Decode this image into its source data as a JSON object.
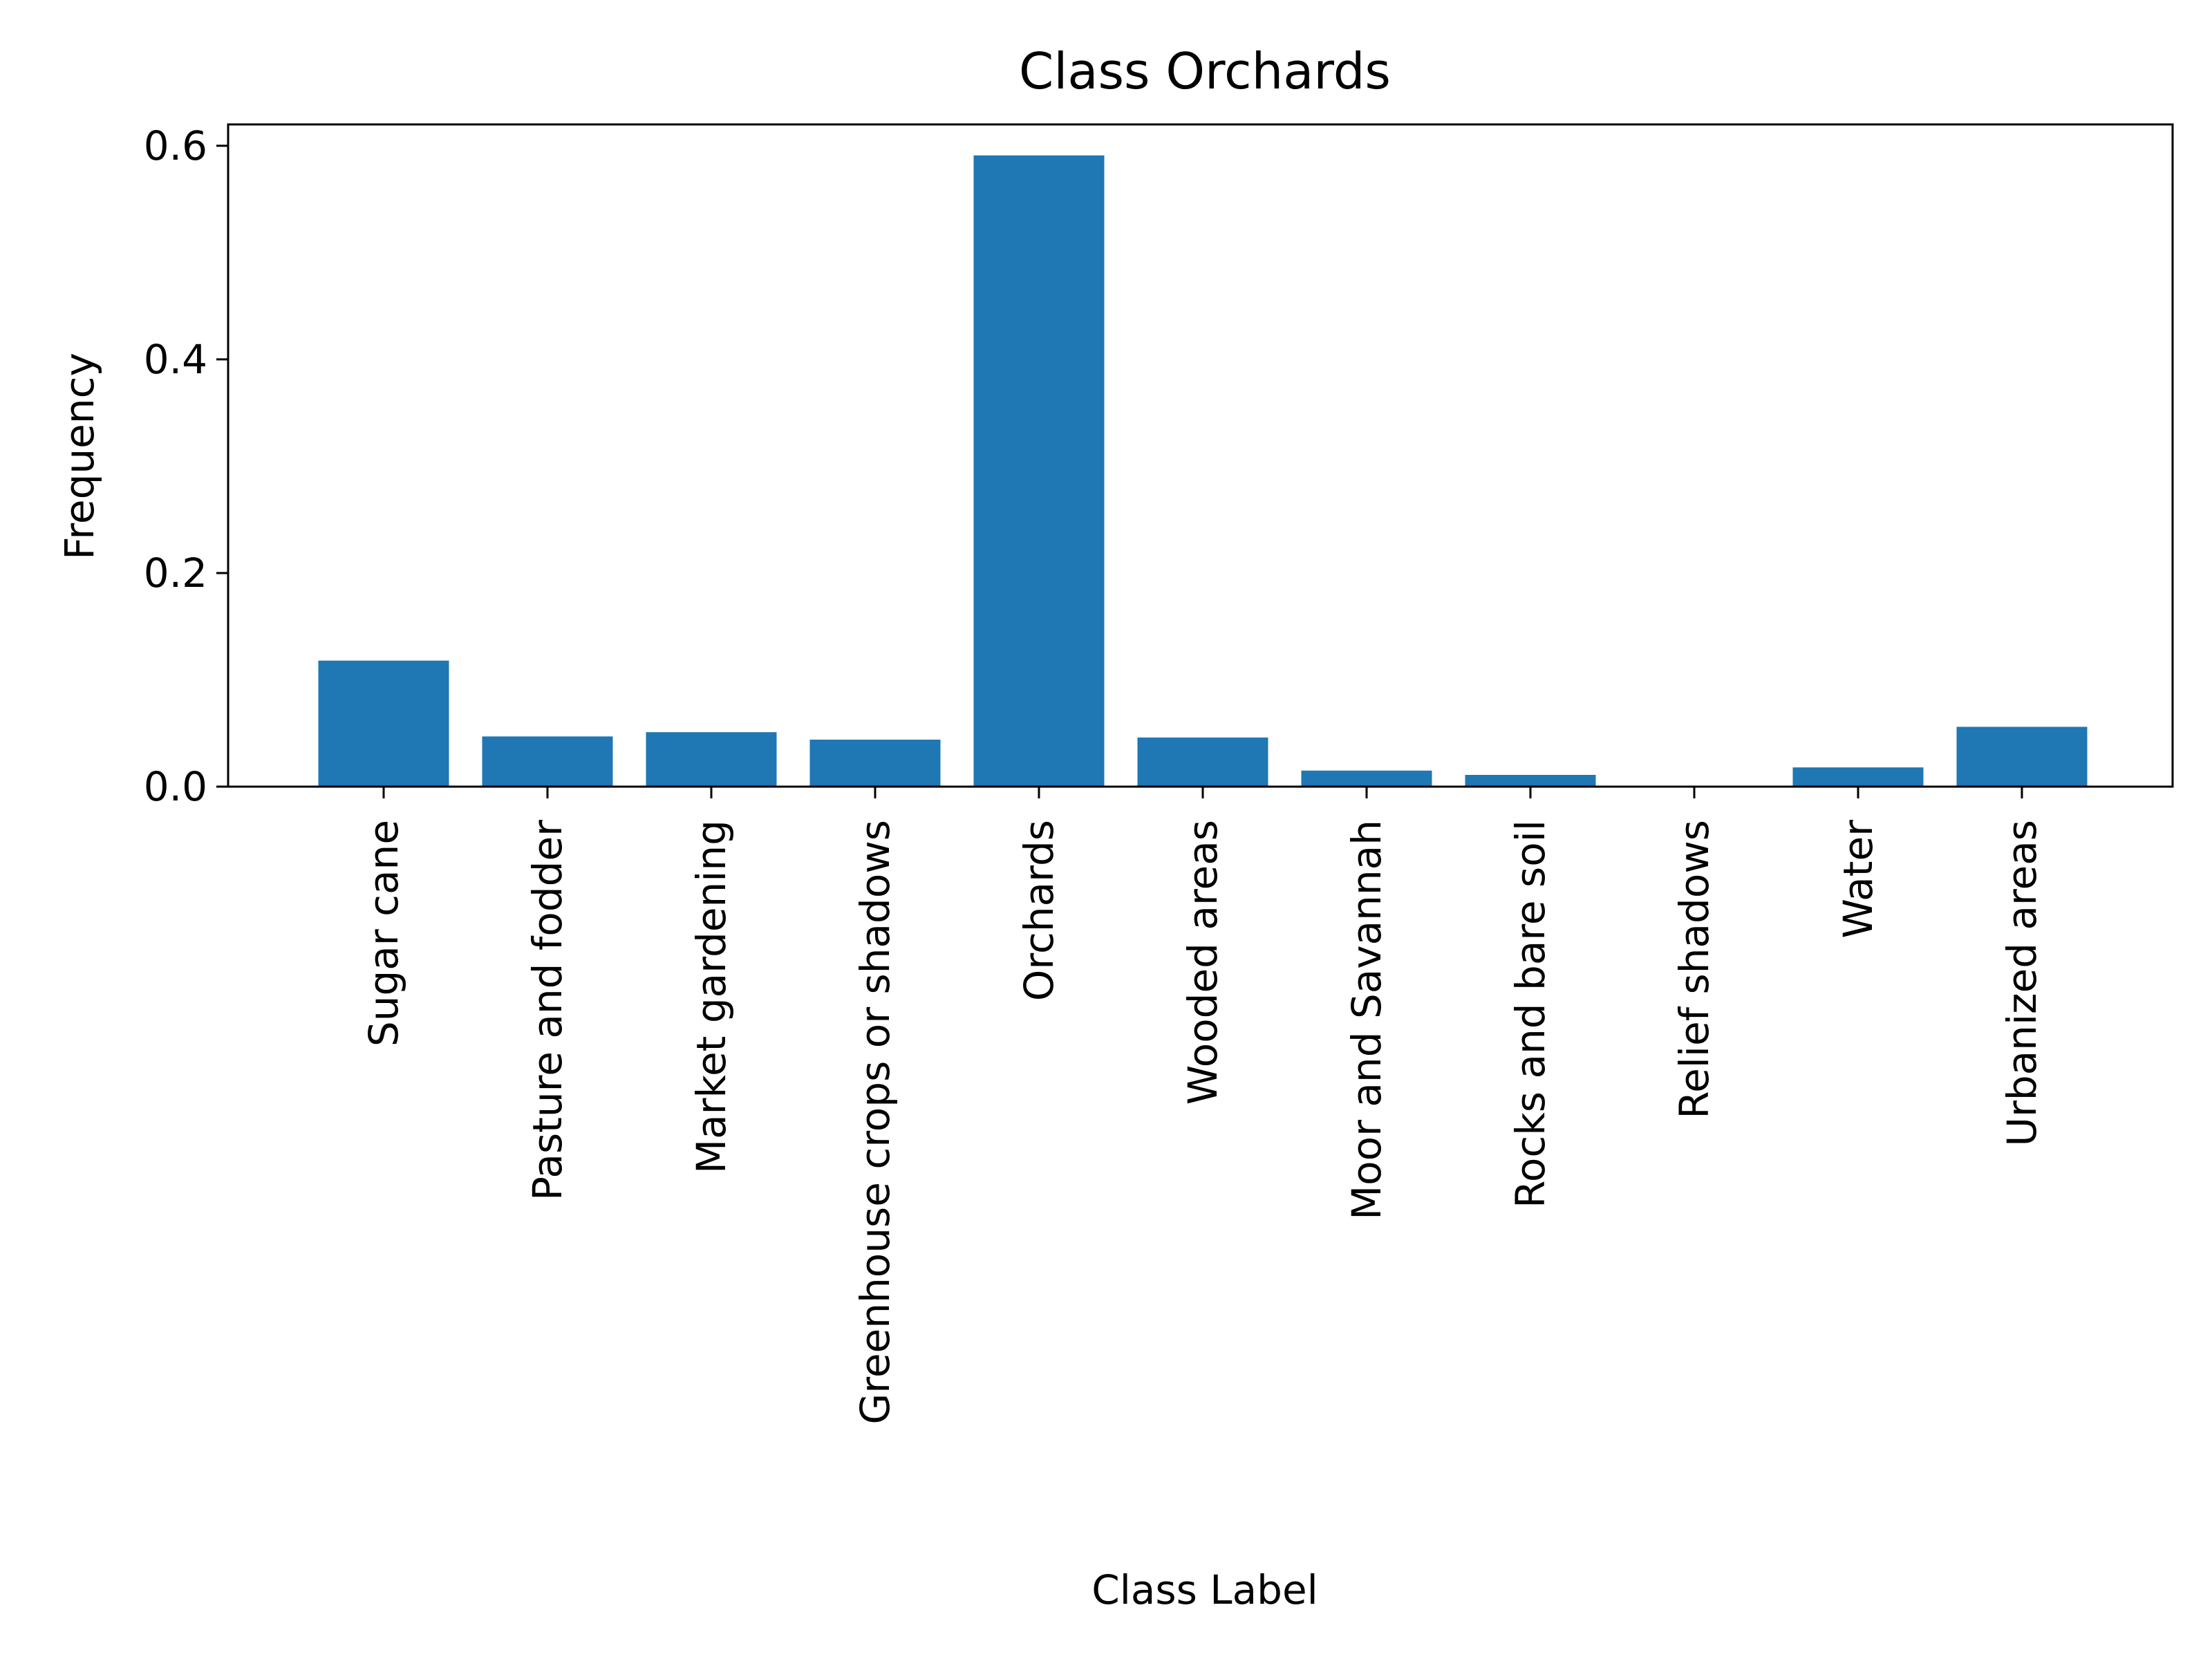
{
  "chart_data": {
    "type": "bar",
    "title": "Class Orchards",
    "xlabel": "Class Label",
    "ylabel": "Frequency",
    "categories": [
      "Sugar cane",
      "Pasture and fodder",
      "Market gardening",
      "Greenhouse crops or shadows",
      "Orchards",
      "Wooded areas",
      "Moor and Savannah",
      "Rocks and bare soil",
      "Relief shadows",
      "Water",
      "Urbanized areas"
    ],
    "values": [
      0.118,
      0.047,
      0.051,
      0.044,
      0.591,
      0.046,
      0.015,
      0.011,
      0.0,
      0.018,
      0.056
    ],
    "ylim": [
      0,
      0.62
    ],
    "yticks": [
      {
        "value": 0.0,
        "label": "0.0"
      },
      {
        "value": 0.2,
        "label": "0.2"
      },
      {
        "value": 0.4,
        "label": "0.4"
      },
      {
        "value": 0.6,
        "label": "0.6"
      }
    ],
    "grid": false,
    "bar_color": "#1f77b4"
  }
}
